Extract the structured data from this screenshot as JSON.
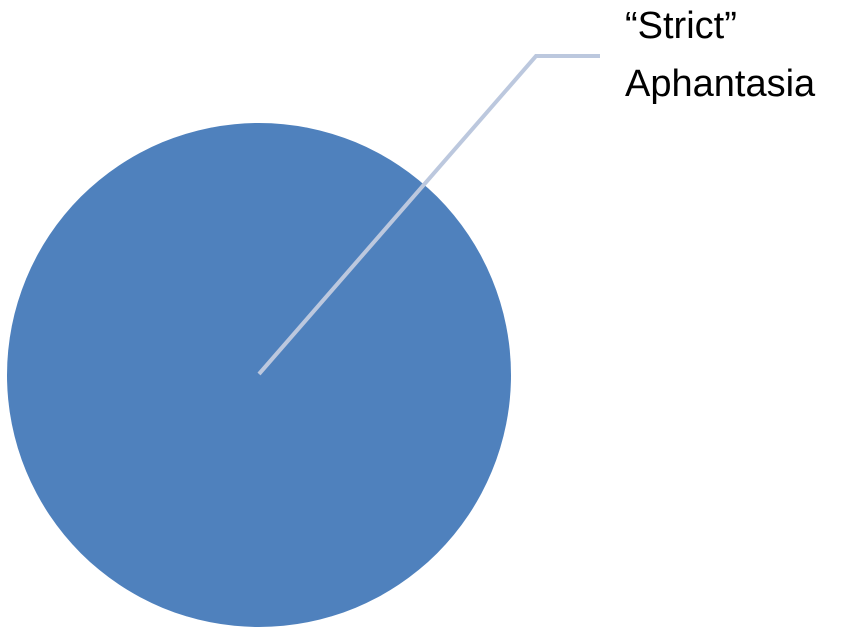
{
  "chart_data": {
    "type": "pie",
    "slices": [
      {
        "label_lines": [
          "“Strict”",
          "Aphantasia"
        ],
        "value": 100,
        "color": "#4F81BD"
      }
    ],
    "leader_line_color": "#BCC8DE"
  }
}
